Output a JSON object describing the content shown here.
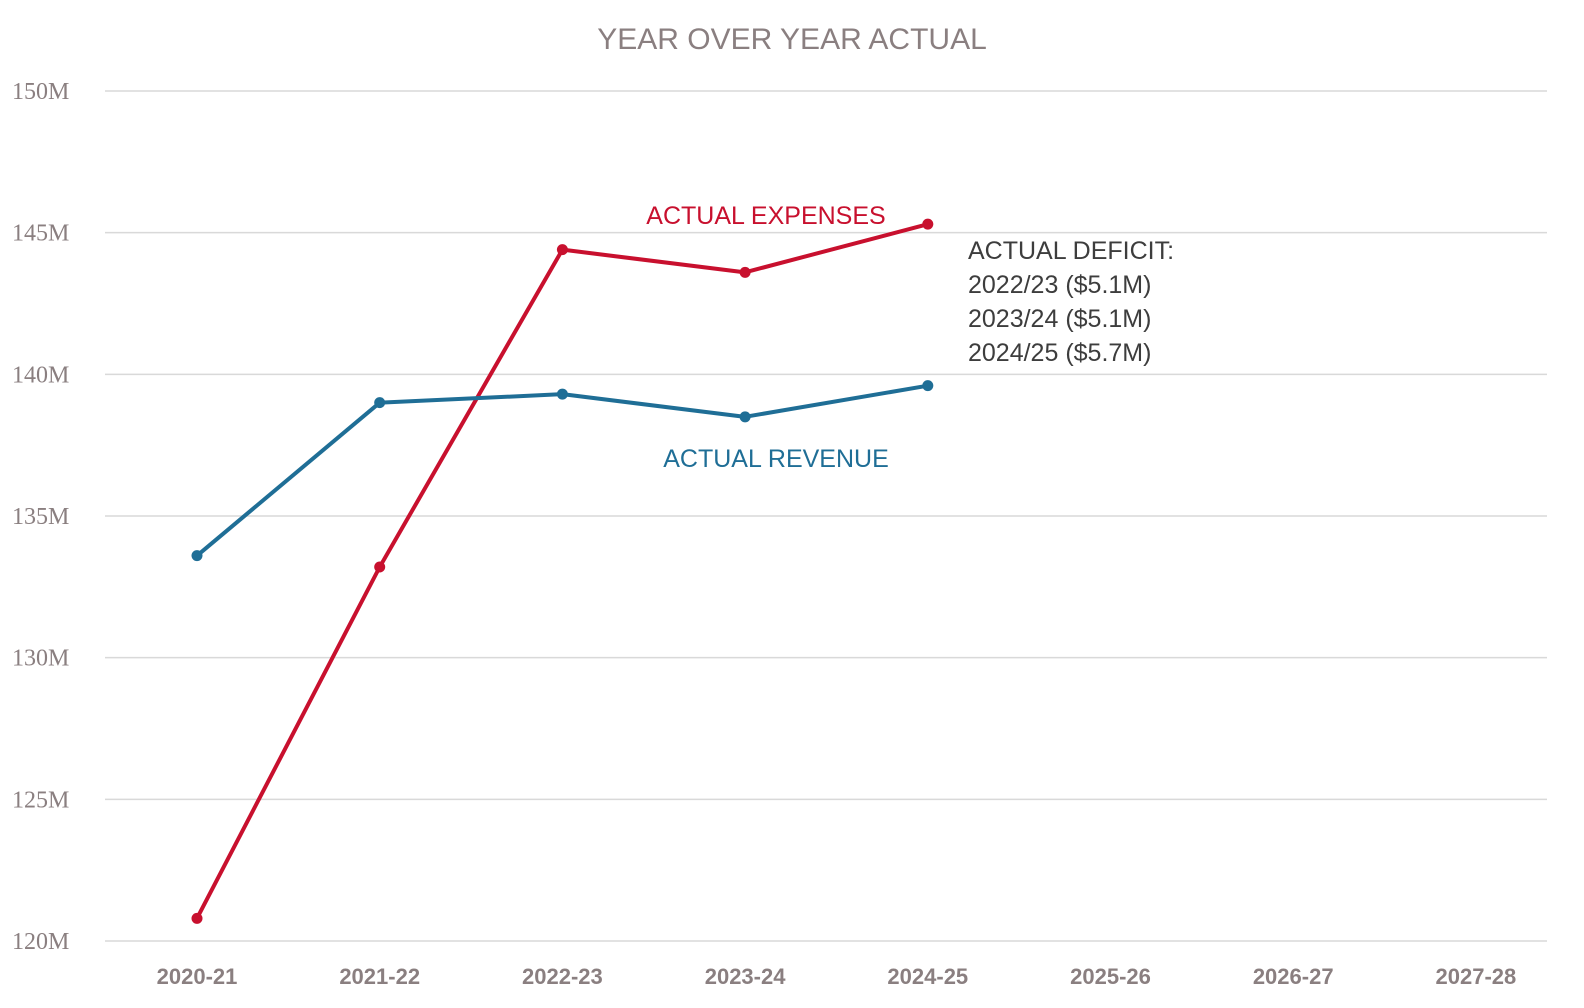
{
  "chart_data": {
    "type": "line",
    "title": "YEAR OVER YEAR ACTUAL",
    "categories": [
      "2020-21",
      "2021-22",
      "2022-23",
      "2023-24",
      "2024-25",
      "2025-26",
      "2026-27",
      "2027-28"
    ],
    "y_ticks": [
      "120M",
      "125M",
      "130M",
      "135M",
      "140M",
      "145M",
      "150M"
    ],
    "ylim": [
      120,
      150
    ],
    "grid": true,
    "series": [
      {
        "name": "ACTUAL EXPENSES",
        "color": "#c8102e",
        "values": [
          120.8,
          133.2,
          144.4,
          143.6,
          145.3,
          null,
          null,
          null
        ]
      },
      {
        "name": "ACTUAL REVENUE",
        "color": "#1f6e96",
        "values": [
          133.6,
          139.0,
          139.3,
          138.5,
          139.6,
          null,
          null,
          null
        ]
      }
    ],
    "annotation": {
      "lines": [
        "ACTUAL DEFICIT:",
        "2022/23 ($5.1M)",
        "2023/24 ($5.1M)",
        "2024/25 ($5.7M)"
      ]
    }
  }
}
